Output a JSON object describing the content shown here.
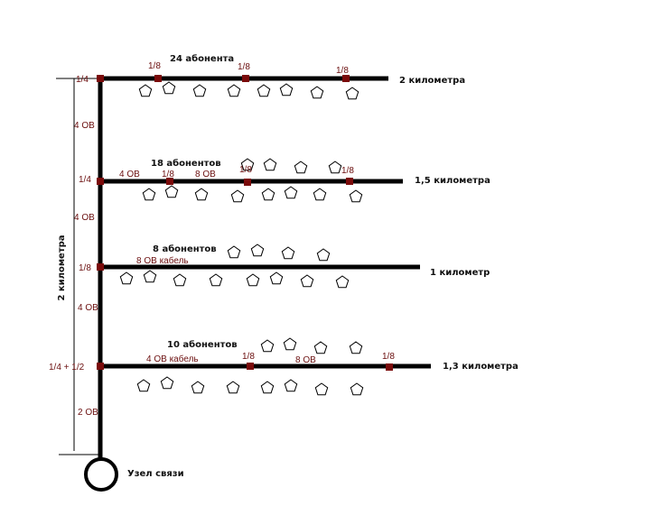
{
  "colors": {
    "line": "#000000",
    "splitter": "#7a0a0a",
    "label": "#6b0f0f"
  },
  "trunk": {
    "length_label": "2 километра",
    "segment_labels": [
      "4 ОВ",
      "4 ОВ",
      "4 ОВ",
      "2 ОВ"
    ],
    "node_label": "Узел связи"
  },
  "branches": [
    {
      "splitter_label": "1/4",
      "subscribers": "24 абонента",
      "length": "2 километра",
      "labels": [
        "1/8",
        "1/8",
        "1/8"
      ]
    },
    {
      "splitter_label": "1/4",
      "subscribers": "18 абонентов",
      "length": "1,5 километра",
      "labels": [
        "4 ОВ",
        "1/8",
        "8 ОВ",
        "1/8",
        "1/8"
      ]
    },
    {
      "splitter_label": "1/8",
      "subscribers": "8 абонентов",
      "length": "1 километр",
      "labels": [
        "8 ОВ кабель"
      ]
    },
    {
      "splitter_label": "1/4 + 1/2",
      "subscribers": "10 абонентов",
      "length": "1,3 километра",
      "labels": [
        "4 ОВ кабель",
        "1/8",
        "8 ОВ",
        "1/8"
      ]
    }
  ],
  "icons": {
    "subscriber": "pentagon-house-icon",
    "splitter": "square-splitter-icon",
    "node": "circle-node-icon"
  }
}
